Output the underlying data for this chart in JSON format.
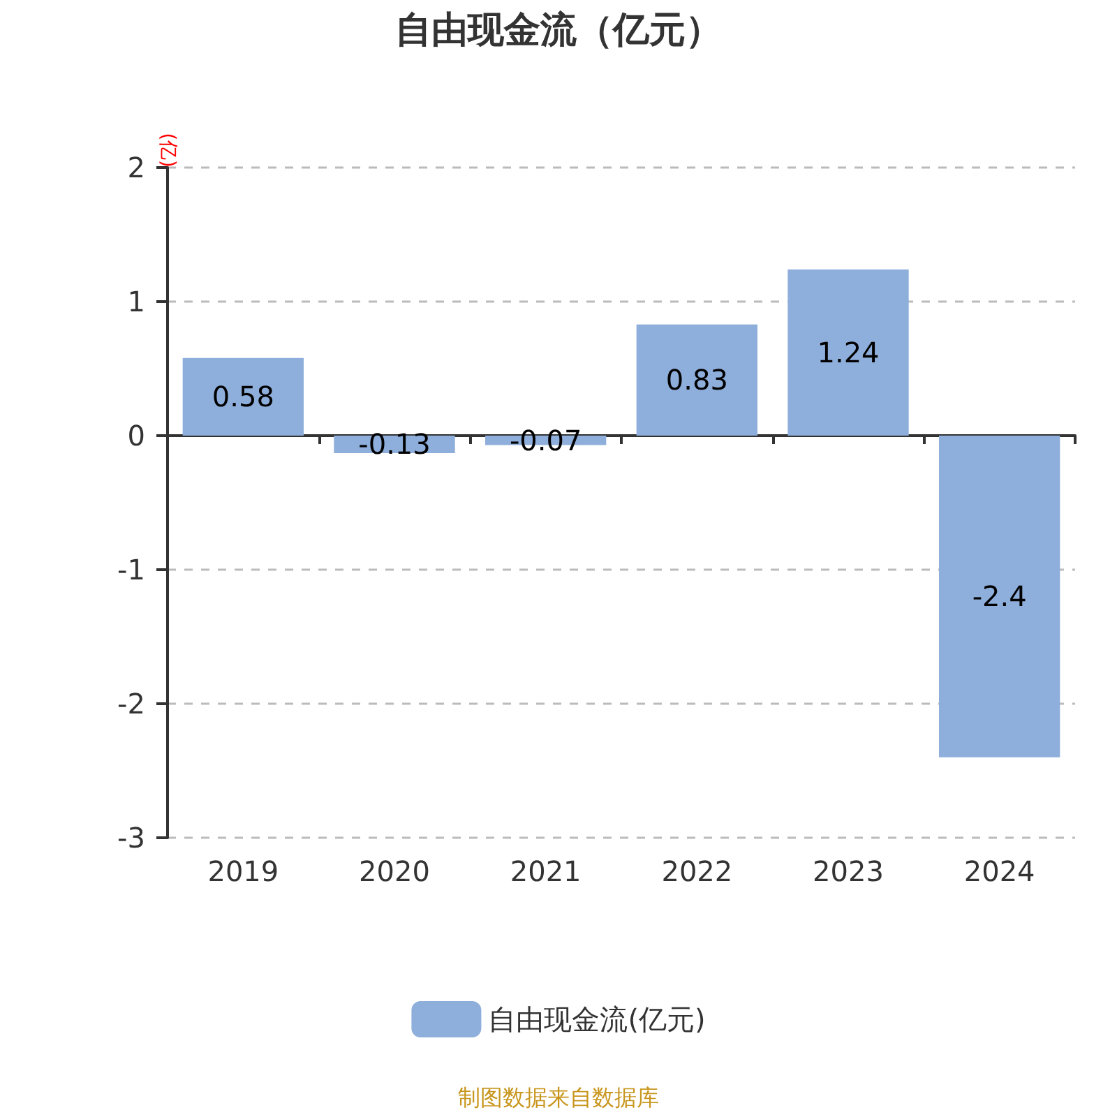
{
  "chart_data": {
    "type": "bar",
    "title": "自由现金流（亿元）",
    "ylabel": "(亿)",
    "categories": [
      "2019",
      "2020",
      "2021",
      "2022",
      "2023",
      "2024"
    ],
    "series": [
      {
        "name": "自由现金流(亿元)",
        "color": "#8eaedb",
        "values": [
          0.58,
          -0.13,
          -0.07,
          0.83,
          1.24,
          -2.4
        ]
      }
    ],
    "ylim": [
      -3,
      2
    ],
    "yticks": [
      -3,
      -2,
      -1,
      0,
      1,
      2
    ],
    "grid": "y",
    "legend": "bottom",
    "data_labels": true,
    "annotations": [
      "制图数据来自数据库"
    ]
  }
}
